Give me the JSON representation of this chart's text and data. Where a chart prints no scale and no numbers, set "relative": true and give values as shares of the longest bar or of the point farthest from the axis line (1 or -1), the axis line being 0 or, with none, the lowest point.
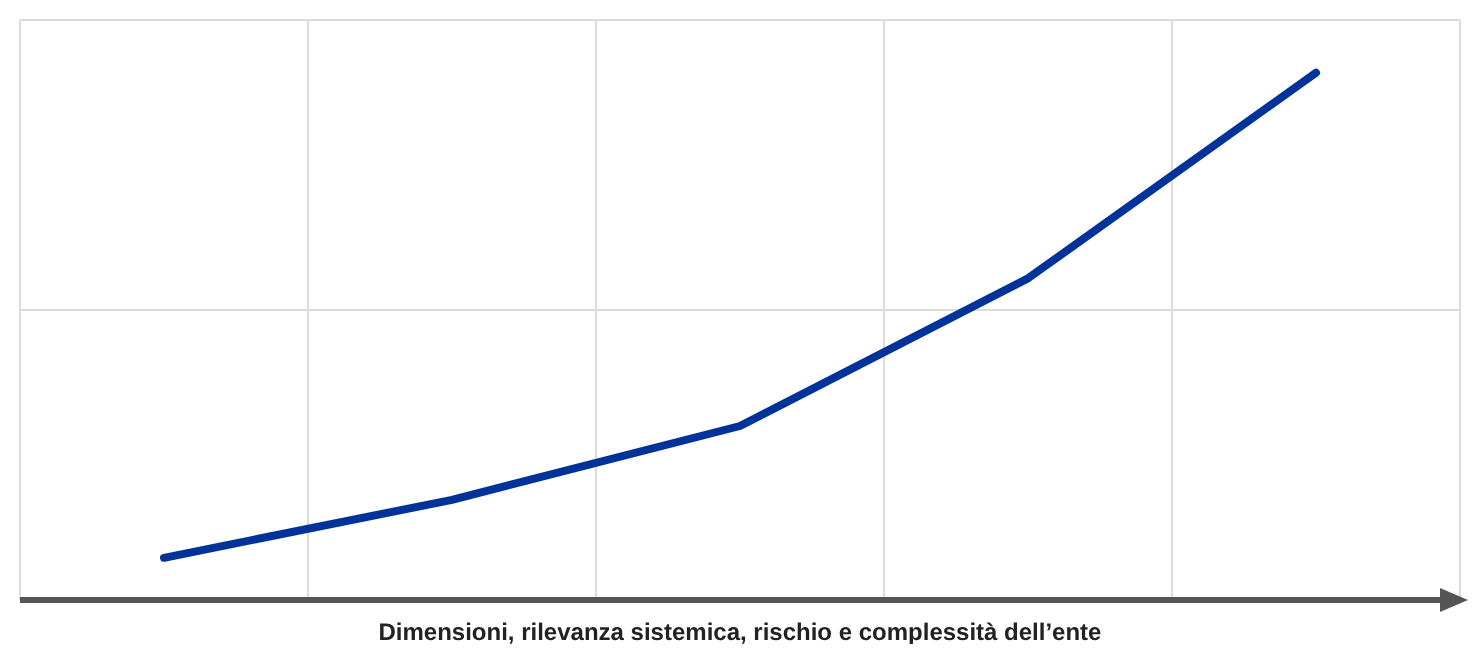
{
  "chart_data": {
    "type": "line",
    "relative": true,
    "xlabel": "Dimensioni, rilevanza sistemica, rischio e complessità dell’ente",
    "categories": [
      null,
      null,
      null,
      null,
      null
    ],
    "series": [
      {
        "color": "#003399",
        "values": [
          0.08,
          0.19,
          0.33,
          0.61,
          1
        ]
      }
    ],
    "grid": true,
    "marker": "none",
    "line_style": "solid"
  }
}
